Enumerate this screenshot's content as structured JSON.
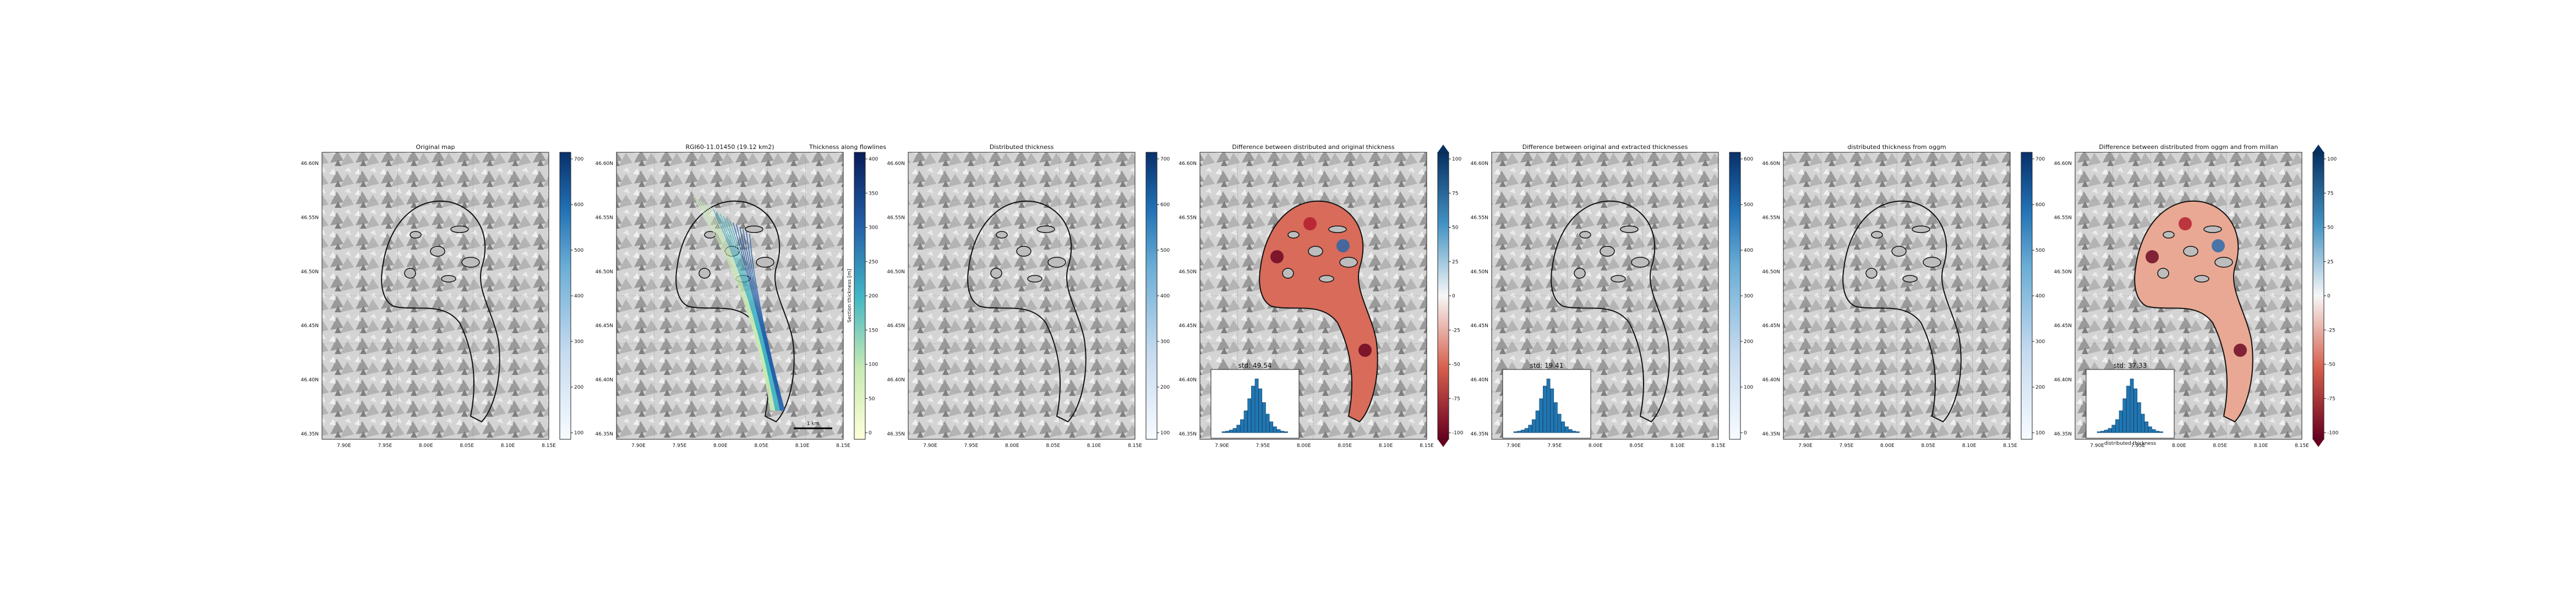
{
  "figure": {
    "panels": [
      {
        "title": "Original map",
        "colorbar_ticks": [
          "100",
          "200",
          "300",
          "400",
          "500",
          "600",
          "700"
        ],
        "cmap": "blues",
        "has_inset": false
      },
      {
        "title": "RGI60-11.01450 (19.12 km2)",
        "colorbar_label": "Section thickness [m]",
        "colorbar_ticks": [
          "0",
          "50",
          "100",
          "150",
          "200",
          "250",
          "300",
          "350",
          "400"
        ],
        "cmap": "ylgnbu",
        "has_inset": false,
        "scalebar": "1 km"
      },
      {
        "title": "Distributed thickness",
        "colorbar_ticks": [
          "100",
          "200",
          "300",
          "400",
          "500",
          "600",
          "700"
        ],
        "cmap": "blues",
        "has_inset": false
      },
      {
        "title": "Difference between distributed and original thickness",
        "colorbar_ticks": [
          "-100",
          "-75",
          "-50",
          "-25",
          "0",
          "25",
          "50",
          "75",
          "100"
        ],
        "cmap": "rdbu",
        "has_inset": true,
        "inset_label": "std: 49.54"
      },
      {
        "title": "Difference between original and extracted thicknesses",
        "colorbar_ticks": [
          "0",
          "100",
          "200",
          "300",
          "400",
          "500",
          "600"
        ],
        "cmap": "blues",
        "has_inset": true,
        "inset_label": "std: 19.41"
      },
      {
        "title": "distributed thickness from oggm",
        "colorbar_ticks": [
          "100",
          "200",
          "300",
          "400",
          "500",
          "600",
          "700"
        ],
        "cmap": "blues",
        "has_inset": false
      },
      {
        "title": "Difference between distributed from oggm and from millan",
        "colorbar_ticks": [
          "-100",
          "-75",
          "-50",
          "-25",
          "0",
          "25",
          "50",
          "75",
          "100"
        ],
        "cmap": "rdbu",
        "has_inset": true,
        "inset_label": "std: 37.33",
        "inset_xlabel": "distributed thickness"
      }
    ],
    "extra_title": "Thickness along flowlines",
    "lat_ticks": [
      "46.60N",
      "46.55N",
      "46.50N",
      "46.45N",
      "46.40N",
      "46.35N"
    ],
    "lon_ticks": [
      "7.90E",
      "7.95E",
      "8.00E",
      "8.05E",
      "8.10E",
      "8.15E"
    ],
    "colors": {
      "outline": "#111111",
      "blue_dark": "#08306b",
      "red_dark": "#67001f"
    }
  },
  "chart_data": [
    {
      "type": "heatmap",
      "title": "Original map",
      "colorbar_range": [
        0,
        750
      ],
      "lat_range": [
        46.35,
        46.62
      ],
      "lon_range": [
        7.86,
        8.15
      ]
    },
    {
      "type": "line",
      "title": "RGI60-11.01450 (19.12 km2)",
      "ylabel": "Section thickness [m]",
      "colorbar_range": [
        0,
        420
      ]
    },
    {
      "type": "heatmap",
      "title": "Distributed thickness",
      "colorbar_range": [
        0,
        750
      ]
    },
    {
      "type": "heatmap",
      "title": "Difference between distributed and original thickness",
      "colorbar_range": [
        -100,
        100
      ],
      "inset": {
        "type": "bar",
        "label": "std: 49.54"
      }
    },
    {
      "type": "heatmap",
      "title": "Difference between original and extracted thicknesses",
      "colorbar_range": [
        -60,
        650
      ],
      "inset": {
        "type": "bar",
        "label": "std: 19.41"
      }
    },
    {
      "type": "heatmap",
      "title": "distributed thickness from oggm",
      "colorbar_range": [
        0,
        750
      ]
    },
    {
      "type": "heatmap",
      "title": "Difference between distributed from oggm and from millan",
      "colorbar_range": [
        -100,
        100
      ],
      "inset": {
        "type": "bar",
        "label": "std: 37.33",
        "xlabel": "distributed thickness"
      }
    }
  ]
}
